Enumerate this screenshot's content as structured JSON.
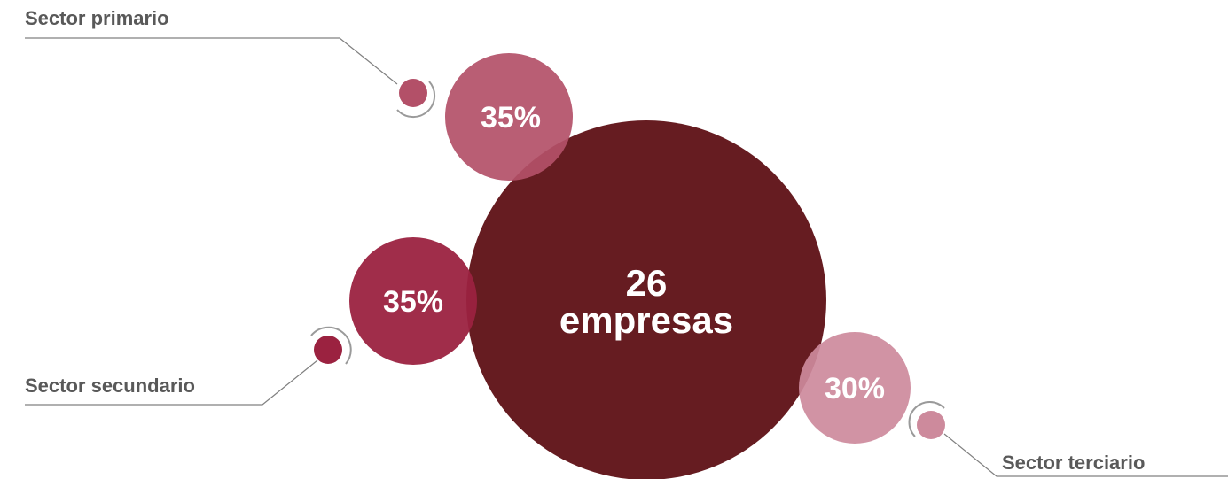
{
  "chart_data": {
    "type": "bubble",
    "center": {
      "value": "26",
      "unit": "empresas"
    },
    "series": [
      {
        "name": "Sector primario",
        "value": 35,
        "label": "35%",
        "color": "#b35068"
      },
      {
        "name": "Sector secundario",
        "value": 35,
        "label": "35%",
        "color": "#9b2240"
      },
      {
        "name": "Sector terciario",
        "value": 30,
        "label": "30%",
        "color": "#cd8a9c"
      }
    ],
    "colors": {
      "center": "#661c21",
      "connector": "#808080",
      "label_text": "#595959"
    }
  }
}
